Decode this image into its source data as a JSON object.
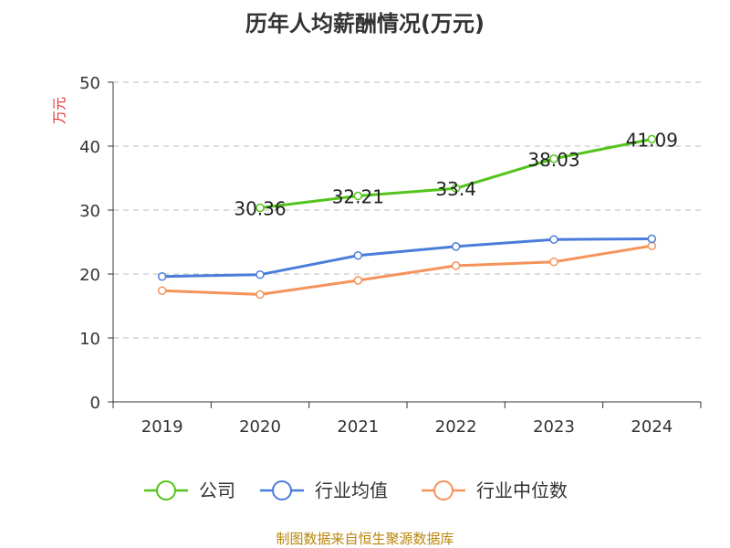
{
  "chart_data": {
    "type": "line",
    "title": "历年人均薪酬情况(万元)",
    "ylabel": "万元",
    "xlabel": "",
    "ylim": [
      0,
      50
    ],
    "yticks": [
      0,
      10,
      20,
      30,
      40,
      50
    ],
    "categories": [
      "2019",
      "2020",
      "2021",
      "2022",
      "2023",
      "2024"
    ],
    "grid": true,
    "legend_position": "bottom",
    "series": [
      {
        "name": "公司",
        "color": "#52c41a",
        "values": [
          null,
          30.36,
          32.21,
          33.4,
          38.03,
          41.09
        ],
        "labels": [
          "",
          "30.36",
          "32.21",
          "33.4",
          "38.03",
          "41.09"
        ]
      },
      {
        "name": "行业均值",
        "color": "#4a7ddb",
        "values": [
          19.6,
          19.9,
          22.9,
          24.3,
          25.4,
          25.5
        ]
      },
      {
        "name": "行业中位数",
        "color": "#f4935a",
        "values": [
          17.4,
          16.8,
          19.0,
          21.3,
          21.9,
          24.4
        ]
      }
    ]
  },
  "footer": {
    "source": "制图数据来自恒生聚源数据库"
  }
}
